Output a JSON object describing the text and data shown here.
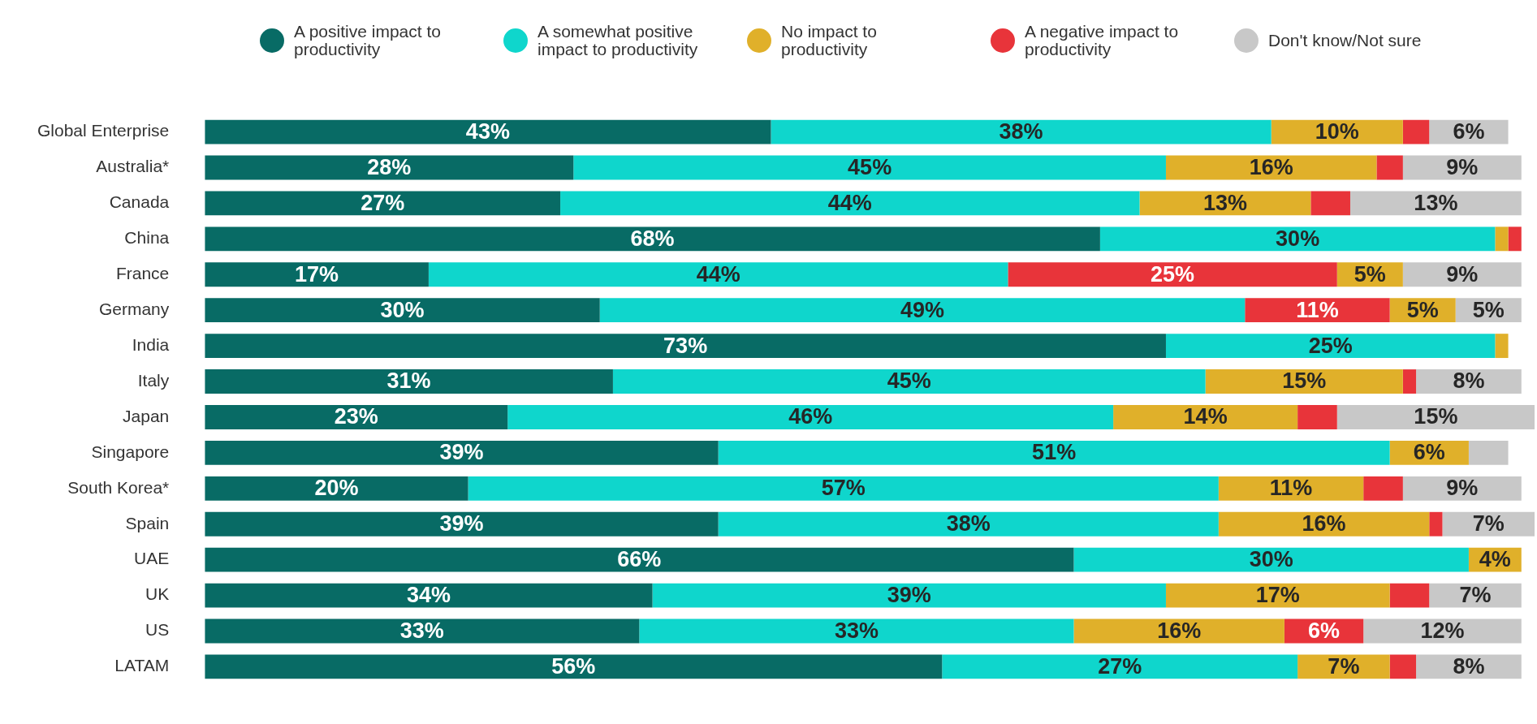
{
  "chart_data": {
    "type": "bar",
    "orientation": "horizontal",
    "stacked": true,
    "legend": "top",
    "grid": false,
    "tick_labels": "y",
    "categories": [
      "Global Enterprise",
      "Australia*",
      "Canada",
      "China",
      "France",
      "Germany",
      "India",
      "Italy",
      "Japan",
      "Singapore",
      "South Korea*",
      "Spain",
      "UAE",
      "UK",
      "US",
      "LATAM"
    ],
    "series": [
      {
        "name": "A positive impact to productivity",
        "color": "#086b65",
        "values": [
          43,
          28,
          27,
          68,
          17,
          30,
          73,
          31,
          23,
          39,
          20,
          39,
          66,
          34,
          33,
          56
        ],
        "value_labels": [
          "43%",
          "28%",
          "27%",
          "68%",
          "17%",
          "30%",
          "73%",
          "31%",
          "23%",
          "39%",
          "20%",
          "39%",
          "66%",
          "34%",
          "33%",
          "56%"
        ]
      },
      {
        "name": "A somewhat positive impact to productivity",
        "color": "#0fd6cc",
        "values": [
          38,
          45,
          44,
          30,
          44,
          49,
          25,
          45,
          46,
          51,
          57,
          38,
          30,
          39,
          33,
          27
        ],
        "value_labels": [
          "38%",
          "45%",
          "44%",
          "30%",
          "44%",
          "49%",
          "25%",
          "45%",
          "46%",
          "51%",
          "57%",
          "38%",
          "30%",
          "39%",
          "33%",
          "27%"
        ]
      },
      {
        "name": "No impact to productivity",
        "color": "#e0b02a",
        "colors": [
          "#e0b02a",
          "#e0b02a",
          "#e0b02a",
          "#e0b02a",
          "#e8343a",
          "#e8343a",
          "#e0b02a",
          "#e0b02a",
          "#e0b02a",
          "#e0b02a",
          "#e0b02a",
          "#e0b02a",
          "#e0b02a",
          "#e0b02a",
          "#e0b02a",
          "#e0b02a"
        ],
        "values": [
          10,
          16,
          13,
          1,
          25,
          11,
          1,
          15,
          14,
          6,
          11,
          16,
          4,
          17,
          16,
          7
        ],
        "value_labels": [
          "10%",
          "16%",
          "13%",
          null,
          "25%",
          "11%",
          null,
          "15%",
          "14%",
          "6%",
          "11%",
          "16%",
          "4%",
          "17%",
          "16%",
          "7%"
        ]
      },
      {
        "name": "A negative impact to productivity",
        "color": "#e8343a",
        "colors": [
          "#e8343a",
          "#e8343a",
          "#e8343a",
          "#e8343a",
          "#e0b02a",
          "#e0b02a",
          "#e8343a",
          "#e8343a",
          "#e8343a",
          "#e8343a",
          "#e8343a",
          "#e8343a",
          "#e8343a",
          "#e8343a",
          "#e8343a",
          "#e8343a"
        ],
        "values": [
          2,
          2,
          3,
          1,
          5,
          5,
          null,
          1,
          3,
          null,
          3,
          1,
          null,
          3,
          6,
          2
        ],
        "value_labels": [
          null,
          null,
          null,
          null,
          "5%",
          "5%",
          null,
          null,
          null,
          null,
          null,
          null,
          null,
          null,
          "6%",
          null
        ]
      },
      {
        "name": "Don't know/Not sure",
        "color": "#c8c8c8",
        "values": [
          6,
          9,
          13,
          null,
          9,
          5,
          null,
          8,
          15,
          3,
          9,
          7,
          null,
          7,
          12,
          8
        ],
        "value_labels": [
          "6%",
          "9%",
          "13%",
          null,
          "9%",
          "5%",
          null,
          "8%",
          "15%",
          null,
          "9%",
          "7%",
          null,
          "7%",
          "12%",
          "8%"
        ]
      }
    ]
  }
}
